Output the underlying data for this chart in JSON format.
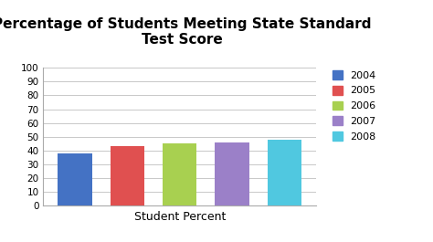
{
  "title": "Percentage of Students Meeting State Standard\nTest Score",
  "xlabel": "Student Percent",
  "ylabel": "",
  "years": [
    "2004",
    "2005",
    "2006",
    "2007",
    "2008"
  ],
  "values": [
    38,
    43,
    45,
    46,
    48
  ],
  "bar_colors": [
    "#4472C4",
    "#E05050",
    "#A8D050",
    "#9B80C8",
    "#50C8E0"
  ],
  "legend_colors": [
    "#4472C4",
    "#E05050",
    "#A8D050",
    "#9B80C8",
    "#50C8E0"
  ],
  "ylim": [
    0,
    100
  ],
  "yticks": [
    0,
    10,
    20,
    30,
    40,
    50,
    60,
    70,
    80,
    90,
    100
  ],
  "title_fontsize": 11,
  "label_fontsize": 9,
  "legend_fontsize": 8,
  "background_color": "#FFFFFF",
  "grid_color": "#C8C8C8"
}
